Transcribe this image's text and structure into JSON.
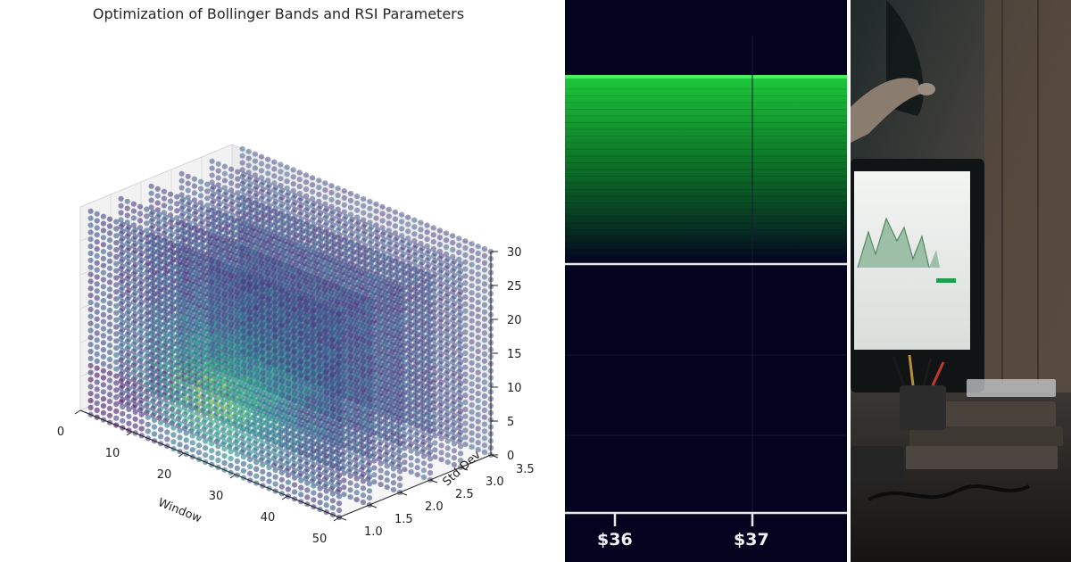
{
  "chart_data": [
    {
      "type": "scatter",
      "subtype": "3d-scatter",
      "title": "Optimization of Bollinger Bands and RSI Parameters",
      "xlabel": "Window",
      "ylabel": "Std Dev",
      "zlabel": "",
      "x_ticks": [
        "0",
        "10",
        "20",
        "30",
        "40",
        "50"
      ],
      "y_ticks": [
        "1.0",
        "1.5",
        "2.0",
        "2.5",
        "3.0",
        "3.5"
      ],
      "z_ticks": [
        "0",
        "5",
        "10",
        "15",
        "20",
        "25",
        "30"
      ],
      "xlim": [
        0,
        50
      ],
      "ylim": [
        1.0,
        3.5
      ],
      "zlim": [
        0,
        30
      ],
      "std_dev_slices": [
        1.0,
        1.5,
        2.0,
        2.5,
        3.0,
        3.5
      ],
      "windows_per_slice": 40,
      "rsi_levels_per_slice": 30,
      "colormap": "viridis",
      "marker_alpha": 0.6
    },
    {
      "type": "heatmap",
      "subtype": "order-book-depth",
      "x_tick_labels": [
        "$36",
        "$37"
      ],
      "accent_color": "#22e040",
      "background": "#03021f"
    }
  ],
  "photo": {
    "description_icon": "desk-monitor-photo-icon"
  }
}
